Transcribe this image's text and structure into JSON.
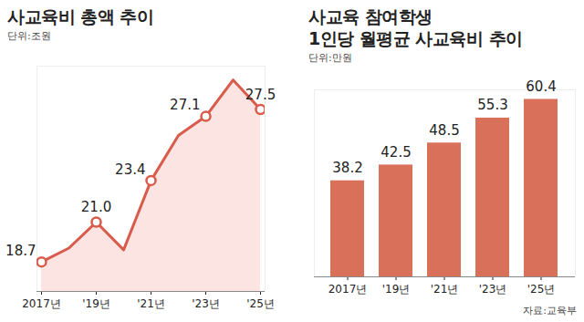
{
  "chart_data": [
    {
      "type": "line",
      "title": "사교육비 총액 추이",
      "subtitle": "단위:조원",
      "categories": [
        "2017년",
        null,
        "'19년",
        null,
        "'21년",
        null,
        "'23년",
        null,
        "'25년"
      ],
      "values": [
        18.7,
        19.5,
        21.0,
        19.4,
        23.4,
        26.0,
        27.1,
        29.2,
        27.5
      ],
      "value_labels": [
        "18.7",
        null,
        "21.0",
        null,
        "23.4",
        null,
        "27.1",
        null,
        "27.5"
      ],
      "data_labels": true,
      "color": "#d95b4b",
      "marker": "circle",
      "ylim": [
        17,
        30
      ],
      "tick_labels": "x",
      "grid": false
    },
    {
      "type": "bar",
      "title": "사교육 참여학생\n1인당 월평균 사교육비 추이",
      "subtitle": "단위:만원",
      "categories": [
        "2017년",
        "'19년",
        "'21년",
        "'23년",
        "'25년"
      ],
      "values": [
        38.2,
        42.5,
        48.5,
        55.3,
        60.4
      ],
      "data_labels": true,
      "color": "#d9705a",
      "ylim": [
        12,
        63
      ],
      "tick_labels": "x",
      "grid": false,
      "source": "자료:교육부"
    }
  ]
}
